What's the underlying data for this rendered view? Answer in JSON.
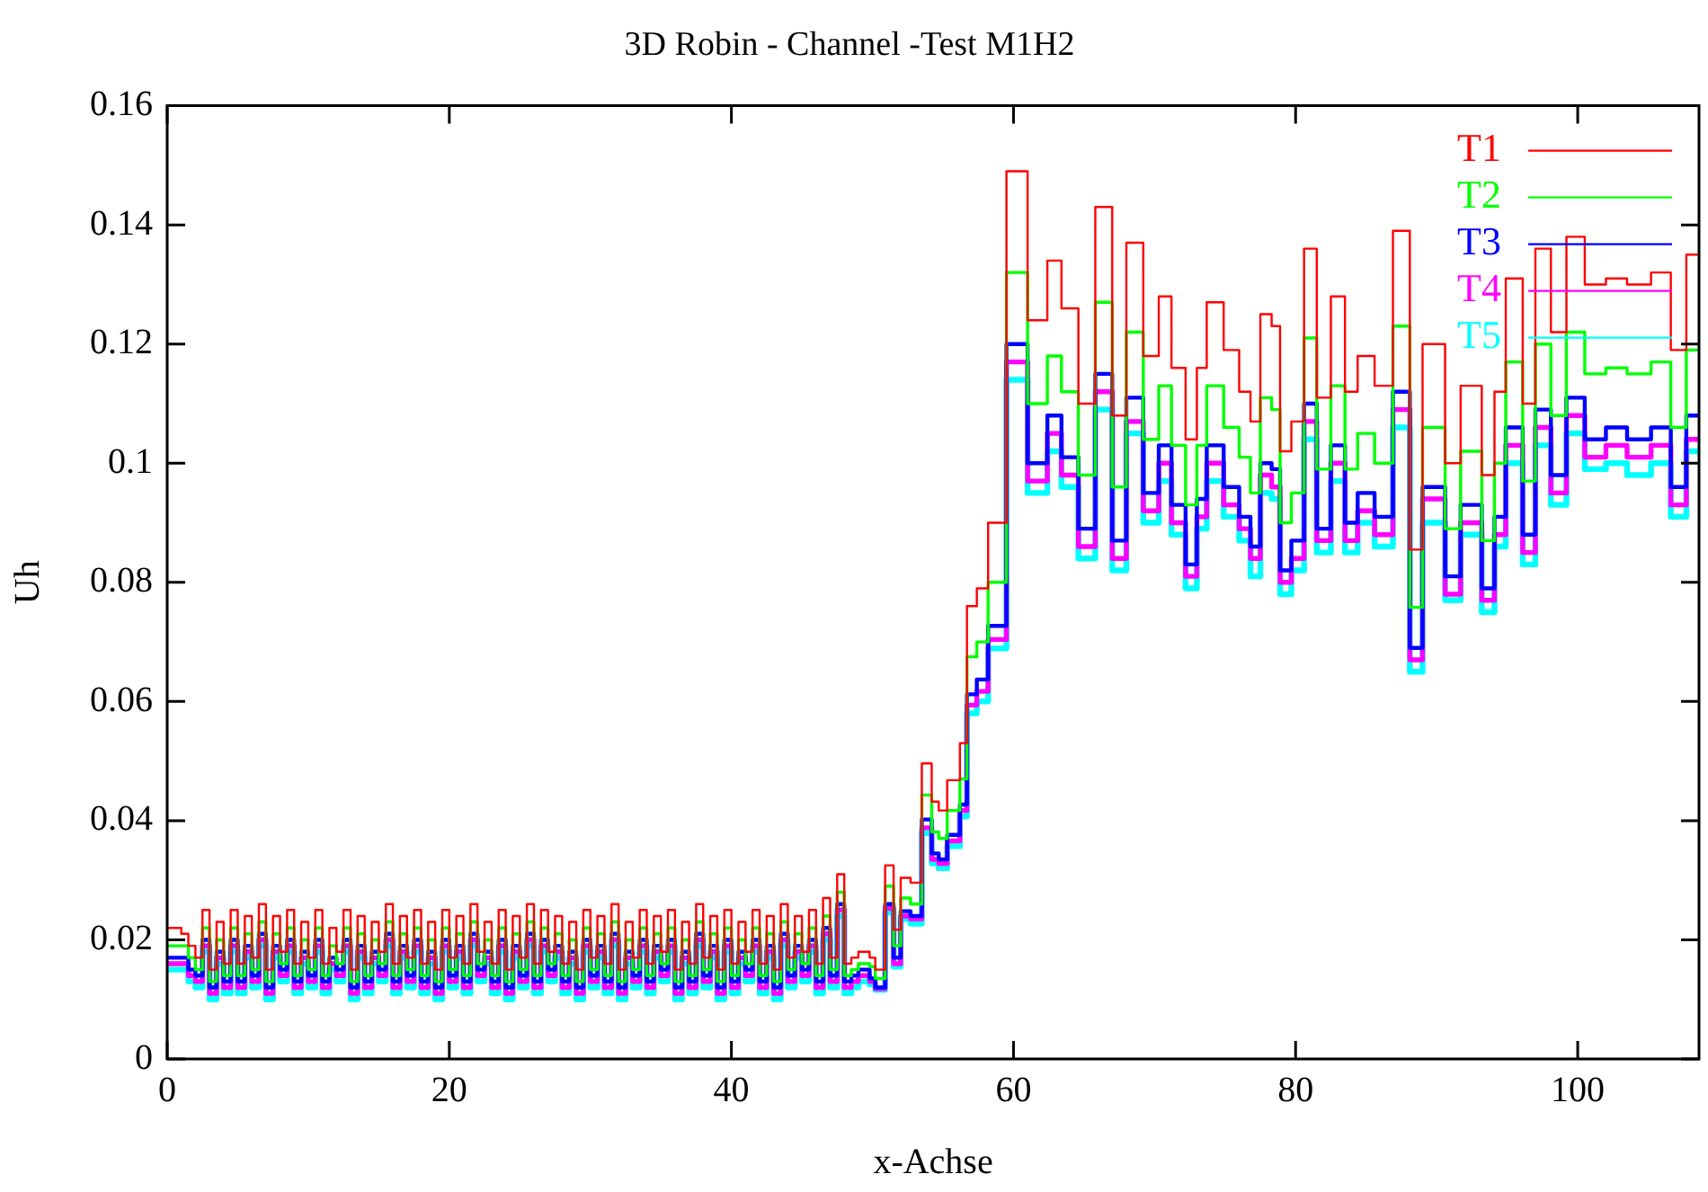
{
  "chart_data": {
    "type": "step",
    "title": "3D Robin - Channel -Test M1H2",
    "xlabel": "x-Achse",
    "ylabel": "Uh",
    "xlim": [
      0,
      108.6
    ],
    "xticks": [
      0,
      20,
      40,
      60,
      80,
      100
    ],
    "ylim": [
      0,
      0.16
    ],
    "yticks": [
      0,
      0.02,
      0.04,
      0.06,
      0.08,
      0.1,
      0.12,
      0.14,
      0.16
    ],
    "grid": false,
    "legend": "top right",
    "marker": "none",
    "line_style": "solid",
    "x": [
      0,
      0.5,
      1,
      1.5,
      2,
      2.5,
      3,
      3.5,
      4,
      4.5,
      5,
      5.5,
      6,
      6.5,
      7,
      7.5,
      8,
      8.5,
      9,
      9.5,
      10,
      10.5,
      11,
      11.5,
      12,
      12.5,
      13,
      13.5,
      14,
      14.5,
      15,
      15.5,
      16,
      16.5,
      17,
      17.5,
      18,
      18.5,
      19,
      19.5,
      20,
      20.5,
      21,
      21.5,
      22,
      22.5,
      23,
      23.5,
      24,
      24.5,
      25,
      25.5,
      26,
      26.5,
      27,
      27.5,
      28,
      28.5,
      29,
      29.5,
      30,
      30.5,
      31,
      31.5,
      32,
      32.5,
      33,
      33.5,
      34,
      34.5,
      35,
      35.5,
      36,
      36.5,
      37,
      37.5,
      38,
      38.5,
      39,
      39.5,
      40,
      40.5,
      41,
      41.5,
      42,
      42.5,
      43,
      43.5,
      44,
      44.5,
      45,
      45.5,
      46,
      46.5,
      47,
      47.5,
      48,
      48.5,
      49,
      49.8,
      50.2,
      50.9,
      51.5,
      52.0,
      52.7,
      53.5,
      54.2,
      54.7,
      55.3,
      56.2,
      56.7,
      57.4,
      58.2,
      59.5,
      61.0,
      62.4,
      63.4,
      64.6,
      65.8,
      67.0,
      68.0,
      69.2,
      70.3,
      71.2,
      72.2,
      73.0,
      73.7,
      74.9,
      76.0,
      76.8,
      77.5,
      78.3,
      78.9,
      79.7,
      80.6,
      81.5,
      82.5,
      83.5,
      84.4,
      85.6,
      86.9,
      88.1,
      89.0,
      90.6,
      91.7,
      93.2,
      94.1,
      94.9,
      96.1,
      97.0,
      98.1,
      99.2,
      100.5,
      102.0,
      103.5,
      105.2,
      106.6,
      107.7,
      108.6
    ],
    "series": [
      {
        "name": "T1",
        "color": "#ff0000",
        "values": [
          0.022,
          0.022,
          0.021,
          0.019,
          0.017,
          0.025,
          0.015,
          0.023,
          0.016,
          0.025,
          0.016,
          0.024,
          0.017,
          0.026,
          0.015,
          0.024,
          0.018,
          0.025,
          0.016,
          0.023,
          0.017,
          0.025,
          0.016,
          0.022,
          0.018,
          0.025,
          0.015,
          0.024,
          0.016,
          0.023,
          0.018,
          0.026,
          0.016,
          0.024,
          0.017,
          0.025,
          0.016,
          0.023,
          0.015,
          0.025,
          0.017,
          0.024,
          0.016,
          0.026,
          0.018,
          0.023,
          0.016,
          0.025,
          0.015,
          0.024,
          0.017,
          0.026,
          0.016,
          0.025,
          0.018,
          0.024,
          0.016,
          0.023,
          0.015,
          0.025,
          0.017,
          0.024,
          0.016,
          0.026,
          0.015,
          0.023,
          0.017,
          0.025,
          0.016,
          0.024,
          0.018,
          0.025,
          0.015,
          0.023,
          0.016,
          0.026,
          0.017,
          0.024,
          0.015,
          0.025,
          0.016,
          0.023,
          0.018,
          0.025,
          0.016,
          0.024,
          0.015,
          0.026,
          0.017,
          0.024,
          0.018,
          0.025,
          0.016,
          0.027,
          0.017,
          0.031,
          0.016,
          0.017,
          0.018,
          0.017,
          0.015,
          0.0325,
          0.0217,
          0.0304,
          0.0296,
          0.0496,
          0.0432,
          0.0417,
          0.0468,
          0.053,
          0.076,
          0.079,
          0.09,
          0.149,
          0.124,
          0.134,
          0.126,
          0.11,
          0.143,
          0.108,
          0.137,
          0.118,
          0.128,
          0.116,
          0.104,
          0.116,
          0.127,
          0.119,
          0.112,
          0.107,
          0.125,
          0.123,
          0.102,
          0.107,
          0.136,
          0.111,
          0.128,
          0.112,
          0.118,
          0.113,
          0.139,
          0.0855,
          0.12,
          0.1,
          0.113,
          0.098,
          0.112,
          0.131,
          0.11,
          0.136,
          0.122,
          0.138,
          0.13,
          0.131,
          0.13,
          0.132,
          0.119,
          0.135,
          0.135
        ]
      },
      {
        "name": "T2",
        "color": "#00ff00",
        "values": [
          0.019,
          0.019,
          0.019,
          0.017,
          0.015,
          0.022,
          0.013,
          0.02,
          0.014,
          0.022,
          0.014,
          0.021,
          0.015,
          0.023,
          0.013,
          0.021,
          0.016,
          0.022,
          0.014,
          0.02,
          0.015,
          0.022,
          0.014,
          0.019,
          0.016,
          0.022,
          0.013,
          0.021,
          0.014,
          0.02,
          0.016,
          0.023,
          0.014,
          0.021,
          0.015,
          0.022,
          0.014,
          0.02,
          0.013,
          0.022,
          0.015,
          0.021,
          0.014,
          0.023,
          0.016,
          0.02,
          0.014,
          0.022,
          0.013,
          0.021,
          0.015,
          0.023,
          0.014,
          0.022,
          0.016,
          0.021,
          0.014,
          0.02,
          0.013,
          0.022,
          0.015,
          0.021,
          0.014,
          0.023,
          0.013,
          0.02,
          0.015,
          0.022,
          0.014,
          0.021,
          0.016,
          0.022,
          0.013,
          0.02,
          0.014,
          0.023,
          0.015,
          0.021,
          0.013,
          0.022,
          0.014,
          0.02,
          0.016,
          0.022,
          0.014,
          0.021,
          0.013,
          0.023,
          0.015,
          0.021,
          0.016,
          0.022,
          0.014,
          0.024,
          0.015,
          0.028,
          0.014,
          0.015,
          0.016,
          0.0155,
          0.0135,
          0.029,
          0.019,
          0.027,
          0.026,
          0.0443,
          0.0381,
          0.037,
          0.0417,
          0.047,
          0.0675,
          0.07,
          0.08,
          0.132,
          0.11,
          0.118,
          0.112,
          0.098,
          0.127,
          0.096,
          0.122,
          0.104,
          0.113,
          0.103,
          0.093,
          0.103,
          0.113,
          0.106,
          0.101,
          0.095,
          0.111,
          0.109,
          0.09,
          0.095,
          0.121,
          0.099,
          0.113,
          0.099,
          0.105,
          0.1,
          0.123,
          0.0758,
          0.106,
          0.089,
          0.102,
          0.087,
          0.1,
          0.117,
          0.097,
          0.12,
          0.108,
          0.122,
          0.115,
          0.116,
          0.115,
          0.117,
          0.106,
          0.119,
          0.119
        ]
      },
      {
        "name": "T3",
        "color": "#0000ff",
        "values": [
          0.017,
          0.017,
          0.017,
          0.015,
          0.014,
          0.02,
          0.012,
          0.018,
          0.013,
          0.02,
          0.013,
          0.019,
          0.014,
          0.021,
          0.012,
          0.019,
          0.015,
          0.02,
          0.013,
          0.018,
          0.014,
          0.02,
          0.013,
          0.017,
          0.015,
          0.02,
          0.012,
          0.019,
          0.013,
          0.018,
          0.015,
          0.021,
          0.013,
          0.019,
          0.014,
          0.02,
          0.013,
          0.018,
          0.012,
          0.02,
          0.014,
          0.019,
          0.013,
          0.021,
          0.015,
          0.018,
          0.013,
          0.02,
          0.012,
          0.019,
          0.014,
          0.021,
          0.013,
          0.02,
          0.015,
          0.019,
          0.013,
          0.018,
          0.012,
          0.02,
          0.014,
          0.019,
          0.013,
          0.021,
          0.012,
          0.018,
          0.014,
          0.02,
          0.013,
          0.019,
          0.015,
          0.02,
          0.012,
          0.018,
          0.013,
          0.021,
          0.014,
          0.019,
          0.012,
          0.02,
          0.013,
          0.018,
          0.015,
          0.02,
          0.013,
          0.019,
          0.012,
          0.021,
          0.014,
          0.019,
          0.015,
          0.02,
          0.013,
          0.022,
          0.014,
          0.026,
          0.013,
          0.014,
          0.015,
          0.0135,
          0.012,
          0.026,
          0.017,
          0.0248,
          0.024,
          0.0402,
          0.0345,
          0.0335,
          0.0376,
          0.0427,
          0.0612,
          0.0637,
          0.0727,
          0.12,
          0.1,
          0.108,
          0.101,
          0.089,
          0.115,
          0.087,
          0.111,
          0.095,
          0.103,
          0.093,
          0.083,
          0.094,
          0.103,
          0.096,
          0.091,
          0.086,
          0.1,
          0.099,
          0.082,
          0.087,
          0.11,
          0.089,
          0.103,
          0.09,
          0.095,
          0.091,
          0.112,
          0.069,
          0.096,
          0.081,
          0.093,
          0.079,
          0.091,
          0.106,
          0.088,
          0.109,
          0.098,
          0.111,
          0.104,
          0.106,
          0.104,
          0.106,
          0.096,
          0.108,
          0.108
        ]
      },
      {
        "name": "T4",
        "color": "#ff00ff",
        "values": [
          0.016,
          0.016,
          0.016,
          0.014,
          0.013,
          0.019,
          0.011,
          0.017,
          0.012,
          0.019,
          0.012,
          0.018,
          0.013,
          0.02,
          0.011,
          0.018,
          0.014,
          0.019,
          0.012,
          0.017,
          0.013,
          0.019,
          0.012,
          0.016,
          0.014,
          0.019,
          0.011,
          0.018,
          0.012,
          0.017,
          0.014,
          0.02,
          0.012,
          0.018,
          0.013,
          0.019,
          0.012,
          0.017,
          0.011,
          0.019,
          0.013,
          0.018,
          0.012,
          0.02,
          0.014,
          0.017,
          0.012,
          0.019,
          0.011,
          0.018,
          0.013,
          0.02,
          0.012,
          0.019,
          0.014,
          0.018,
          0.012,
          0.017,
          0.011,
          0.019,
          0.013,
          0.018,
          0.012,
          0.02,
          0.011,
          0.017,
          0.013,
          0.019,
          0.012,
          0.018,
          0.014,
          0.019,
          0.011,
          0.017,
          0.012,
          0.02,
          0.013,
          0.018,
          0.011,
          0.019,
          0.012,
          0.017,
          0.014,
          0.019,
          0.012,
          0.018,
          0.011,
          0.02,
          0.013,
          0.018,
          0.014,
          0.019,
          0.012,
          0.021,
          0.013,
          0.025,
          0.012,
          0.013,
          0.014,
          0.013,
          0.0118,
          0.0253,
          0.016,
          0.024,
          0.0235,
          0.0388,
          0.0335,
          0.0328,
          0.0366,
          0.0417,
          0.0594,
          0.0617,
          0.0704,
          0.117,
          0.097,
          0.105,
          0.098,
          0.086,
          0.112,
          0.084,
          0.107,
          0.092,
          0.1,
          0.09,
          0.081,
          0.091,
          0.1,
          0.093,
          0.089,
          0.084,
          0.098,
          0.096,
          0.08,
          0.084,
          0.107,
          0.087,
          0.1,
          0.087,
          0.092,
          0.088,
          0.109,
          0.067,
          0.094,
          0.078,
          0.09,
          0.077,
          0.088,
          0.103,
          0.085,
          0.106,
          0.095,
          0.108,
          0.101,
          0.103,
          0.101,
          0.103,
          0.093,
          0.104,
          0.104
        ]
      },
      {
        "name": "T5",
        "color": "#00ffff",
        "values": [
          0.015,
          0.015,
          0.015,
          0.013,
          0.012,
          0.018,
          0.01,
          0.016,
          0.011,
          0.018,
          0.011,
          0.017,
          0.012,
          0.019,
          0.01,
          0.017,
          0.013,
          0.018,
          0.011,
          0.016,
          0.012,
          0.018,
          0.011,
          0.015,
          0.013,
          0.018,
          0.01,
          0.017,
          0.011,
          0.016,
          0.013,
          0.019,
          0.011,
          0.017,
          0.012,
          0.018,
          0.011,
          0.016,
          0.01,
          0.018,
          0.012,
          0.017,
          0.011,
          0.019,
          0.013,
          0.016,
          0.011,
          0.018,
          0.01,
          0.017,
          0.012,
          0.019,
          0.011,
          0.018,
          0.013,
          0.017,
          0.011,
          0.016,
          0.01,
          0.018,
          0.012,
          0.017,
          0.011,
          0.019,
          0.01,
          0.016,
          0.012,
          0.018,
          0.011,
          0.017,
          0.013,
          0.018,
          0.01,
          0.016,
          0.011,
          0.019,
          0.012,
          0.017,
          0.01,
          0.018,
          0.011,
          0.016,
          0.013,
          0.018,
          0.011,
          0.017,
          0.01,
          0.019,
          0.012,
          0.017,
          0.013,
          0.018,
          0.011,
          0.02,
          0.012,
          0.024,
          0.011,
          0.012,
          0.013,
          0.0125,
          0.0116,
          0.0246,
          0.0155,
          0.0235,
          0.0227,
          0.0379,
          0.0328,
          0.032,
          0.0357,
          0.0407,
          0.058,
          0.06,
          0.0689,
          0.114,
          0.095,
          0.102,
          0.096,
          0.084,
          0.109,
          0.082,
          0.105,
          0.09,
          0.097,
          0.088,
          0.079,
          0.089,
          0.097,
          0.091,
          0.087,
          0.081,
          0.095,
          0.094,
          0.078,
          0.082,
          0.104,
          0.085,
          0.097,
          0.085,
          0.09,
          0.086,
          0.106,
          0.065,
          0.09,
          0.077,
          0.088,
          0.075,
          0.086,
          0.1,
          0.083,
          0.103,
          0.093,
          0.105,
          0.099,
          0.1,
          0.098,
          0.1,
          0.091,
          0.102,
          0.102
        ]
      }
    ]
  }
}
